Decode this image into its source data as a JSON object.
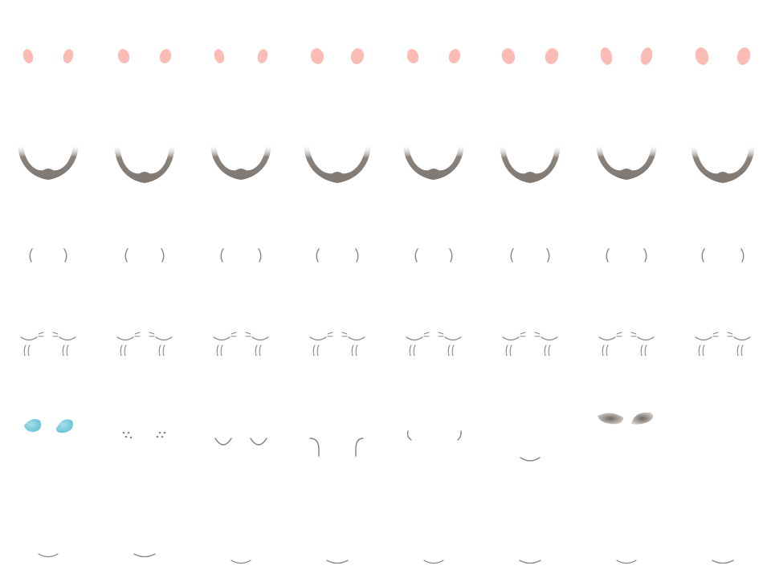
{
  "colors": {
    "blush": "#fbbcb6",
    "line": "#8a847f",
    "fill_dark": "#8a837d",
    "fill_top": "#ffffff",
    "tear": "#7ccbdc",
    "shadow": "#8c837c"
  },
  "rows": [
    {
      "name": "blush-row",
      "kind": "blush-ovals",
      "count": 8
    },
    {
      "name": "beard-row",
      "kind": "beard-shapes",
      "count": 8
    },
    {
      "name": "brow-row",
      "kind": "paren-brows",
      "count": 8
    },
    {
      "name": "closed-eyes-row",
      "kind": "closed-eyes-with-lashes",
      "count": 8
    },
    {
      "name": "misc-row",
      "kind": "mixed",
      "items": [
        "tear-drops",
        "freckle-dots",
        "smile-curves",
        "hook-lines",
        "small-brackets",
        "chin-curve",
        "eye-shadows"
      ]
    },
    {
      "name": "mouth-row",
      "kind": "mouth-curves",
      "count": 8
    }
  ]
}
